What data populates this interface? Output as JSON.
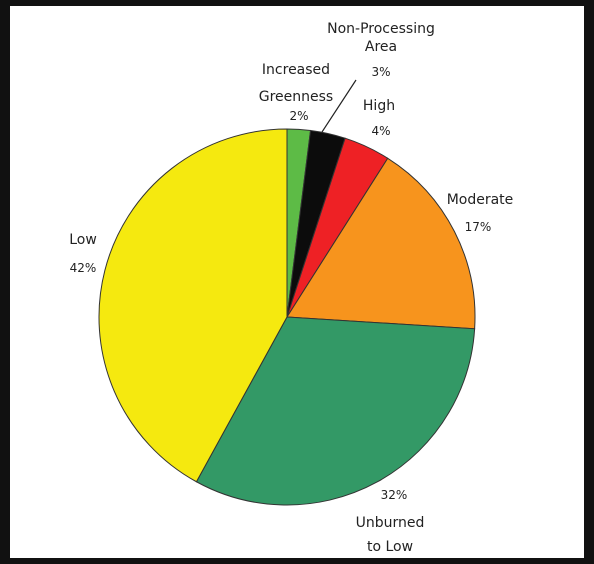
{
  "chart_data": {
    "type": "pie",
    "title": "",
    "slices": [
      {
        "label_lines": [
          "Increased",
          "Greenness"
        ],
        "value": 2,
        "value_label": "2%",
        "color": "#5dbb46"
      },
      {
        "label_lines": [
          "Non-Processing",
          "Area"
        ],
        "value": 3,
        "value_label": "3%",
        "color": "#0c0c0c"
      },
      {
        "label_lines": [
          "High"
        ],
        "value": 4,
        "value_label": "4%",
        "color": "#ee2125"
      },
      {
        "label_lines": [
          "Moderate"
        ],
        "value": 17,
        "value_label": "17%",
        "color": "#f7941d"
      },
      {
        "label_lines": [
          "Unburned",
          "to Low"
        ],
        "value": 32,
        "value_label": "32%",
        "color": "#339966"
      },
      {
        "label_lines": [
          "Low"
        ],
        "value": 42,
        "value_label": "42%",
        "color": "#f5e90f"
      }
    ],
    "start": "top",
    "direction": "clockwise",
    "legend": "none"
  }
}
